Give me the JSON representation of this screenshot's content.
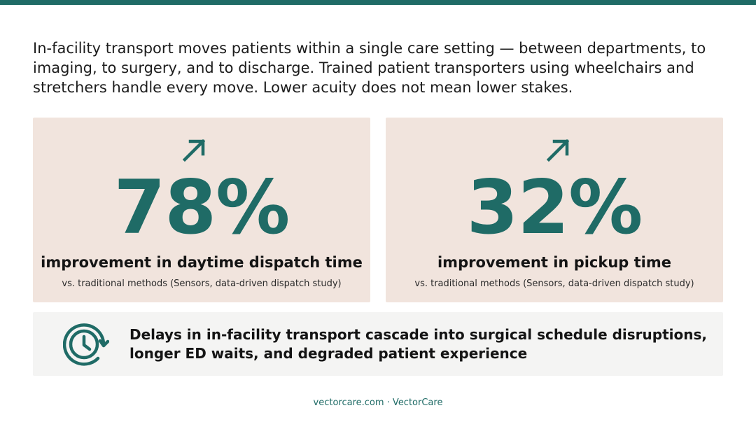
{
  "colors": {
    "accent": "#1f6b66",
    "card_background": "#f1e4dd",
    "callout_background": "#f4f4f3"
  },
  "intro_text": "In-facility transport moves patients within a single care setting — between departments, to imaging, to surgery, and to discharge. Trained patient transporters using wheelchairs and stretchers handle every move. Lower acuity does not mean lower stakes.",
  "stats": [
    {
      "icon": "arrow-up-right-icon",
      "value": "78%",
      "label": "improvement in daytime dispatch time",
      "source": "vs. traditional methods (Sensors, data-driven dispatch study)"
    },
    {
      "icon": "arrow-up-right-icon",
      "value": "32%",
      "label": "improvement in pickup time",
      "source": "vs. traditional methods (Sensors, data-driven dispatch study)"
    }
  ],
  "callout": {
    "icon": "clock-history-icon",
    "text": "Delays in in-facility transport cascade into surgical schedule disruptions, longer ED waits, and degraded patient experience"
  },
  "footer": "vectorcare.com · VectorCare"
}
